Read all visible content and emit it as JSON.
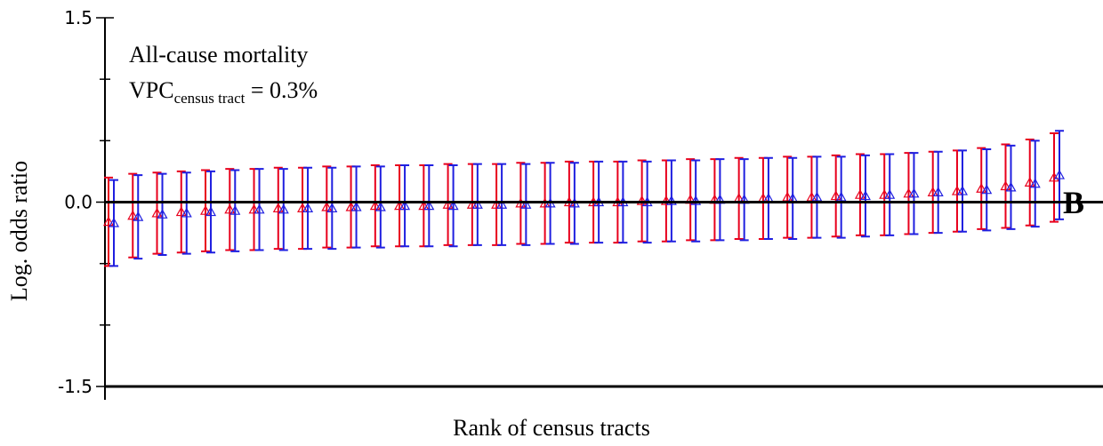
{
  "chart_data": {
    "type": "caterpillar",
    "y_label": "Log. odds ratio",
    "x_label": "Rank of census tracts",
    "annotation": "All-cause mortality",
    "vpc": {
      "main": "VPC",
      "sub": "census tract",
      "rest": " = 0.3%"
    },
    "panel_label": "B",
    "ylim": [
      -1.5,
      1.5
    ],
    "yticks": [
      {
        "value": 1.5,
        "label": "1.5"
      },
      {
        "value": 0,
        "label": "0.0"
      },
      {
        "value": -1.5,
        "label": "-1.5"
      }
    ],
    "yticks_minor": [
      1.0,
      0.5,
      -0.5,
      -1.0
    ],
    "reference_line": 0,
    "series": [
      {
        "color": "#e8001c",
        "values": [
          -0.16,
          -0.11,
          -0.09,
          -0.08,
          -0.07,
          -0.06,
          -0.06,
          -0.05,
          -0.05,
          -0.04,
          -0.04,
          -0.03,
          -0.03,
          -0.03,
          -0.02,
          -0.02,
          -0.02,
          -0.01,
          -0.01,
          0.0,
          0.0,
          0.0,
          0.01,
          0.01,
          0.02,
          0.02,
          0.03,
          0.03,
          0.04,
          0.04,
          0.05,
          0.06,
          0.06,
          0.07,
          0.08,
          0.09,
          0.11,
          0.13,
          0.16,
          0.2
        ],
        "errors": [
          0.36,
          0.34,
          0.33,
          0.33,
          0.33,
          0.33,
          0.33,
          0.33,
          0.33,
          0.33,
          0.33,
          0.33,
          0.33,
          0.33,
          0.33,
          0.33,
          0.33,
          0.33,
          0.33,
          0.33,
          0.33,
          0.33,
          0.33,
          0.33,
          0.33,
          0.33,
          0.33,
          0.33,
          0.33,
          0.33,
          0.33,
          0.33,
          0.33,
          0.33,
          0.33,
          0.33,
          0.33,
          0.34,
          0.35,
          0.36
        ]
      },
      {
        "color": "#1f1fe0",
        "values": [
          -0.17,
          -0.12,
          -0.1,
          -0.09,
          -0.08,
          -0.07,
          -0.06,
          -0.06,
          -0.05,
          -0.05,
          -0.04,
          -0.04,
          -0.03,
          -0.03,
          -0.03,
          -0.02,
          -0.02,
          -0.02,
          -0.01,
          -0.01,
          0.0,
          0.0,
          0.0,
          0.01,
          0.01,
          0.02,
          0.02,
          0.03,
          0.03,
          0.04,
          0.04,
          0.05,
          0.06,
          0.07,
          0.08,
          0.09,
          0.1,
          0.12,
          0.15,
          0.22
        ],
        "errors": [
          0.35,
          0.34,
          0.33,
          0.33,
          0.33,
          0.33,
          0.33,
          0.33,
          0.33,
          0.33,
          0.33,
          0.33,
          0.33,
          0.33,
          0.33,
          0.33,
          0.33,
          0.33,
          0.33,
          0.33,
          0.33,
          0.33,
          0.33,
          0.33,
          0.33,
          0.33,
          0.33,
          0.33,
          0.33,
          0.33,
          0.33,
          0.33,
          0.33,
          0.33,
          0.33,
          0.33,
          0.33,
          0.34,
          0.35,
          0.36
        ]
      }
    ]
  }
}
